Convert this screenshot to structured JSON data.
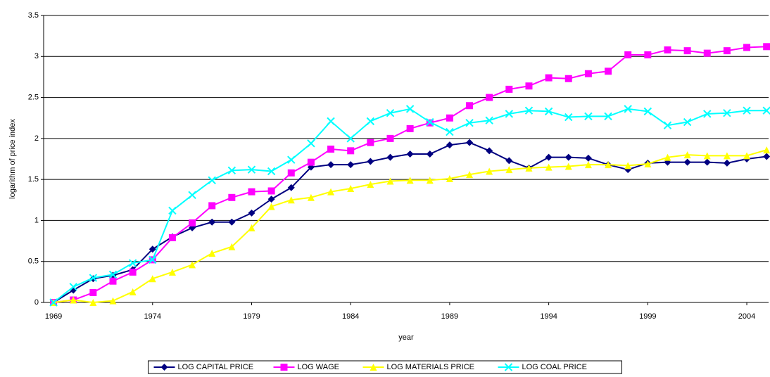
{
  "chart_data": {
    "type": "line",
    "y_label": "logarithm of price index",
    "x_label": "year",
    "x": [
      1969,
      1970,
      1971,
      1972,
      1973,
      1974,
      1975,
      1976,
      1977,
      1978,
      1979,
      1980,
      1981,
      1982,
      1983,
      1984,
      1985,
      1986,
      1987,
      1988,
      1989,
      1990,
      1991,
      1992,
      1993,
      1994,
      1995,
      1996,
      1997,
      1998,
      1999,
      2000,
      2001,
      2002,
      2003,
      2004,
      2005
    ],
    "series": [
      {
        "name": "LOG CAPITAL PRICE",
        "color": "#000080",
        "marker": "diamond",
        "values": [
          0,
          0.15,
          0.29,
          0.33,
          0.4,
          0.65,
          0.8,
          0.91,
          0.98,
          0.98,
          1.09,
          1.26,
          1.4,
          1.65,
          1.68,
          1.68,
          1.72,
          1.77,
          1.81,
          1.81,
          1.92,
          1.95,
          1.85,
          1.73,
          1.64,
          1.77,
          1.77,
          1.76,
          1.68,
          1.62,
          1.7,
          1.71,
          1.71,
          1.71,
          1.7,
          1.75,
          1.78
        ]
      },
      {
        "name": "LOG WAGE",
        "color": "#ff00ff",
        "marker": "square",
        "values": [
          0,
          0.03,
          0.12,
          0.26,
          0.37,
          0.52,
          0.79,
          0.97,
          1.18,
          1.28,
          1.35,
          1.36,
          1.58,
          1.71,
          1.87,
          1.85,
          1.95,
          2.0,
          2.12,
          2.19,
          2.25,
          2.4,
          2.5,
          2.6,
          2.64,
          2.74,
          2.73,
          2.79,
          2.82,
          3.02,
          3.02,
          3.08,
          3.07,
          3.04,
          3.07,
          3.11,
          3.12
        ]
      },
      {
        "name": "LOG MATERIALS PRICE",
        "color": "#ffff00",
        "marker": "triangle",
        "values": [
          0,
          0.03,
          0.0,
          0.02,
          0.13,
          0.29,
          0.37,
          0.46,
          0.6,
          0.68,
          0.91,
          1.17,
          1.25,
          1.28,
          1.35,
          1.39,
          1.44,
          1.48,
          1.49,
          1.49,
          1.51,
          1.56,
          1.6,
          1.62,
          1.64,
          1.65,
          1.66,
          1.68,
          1.68,
          1.67,
          1.69,
          1.77,
          1.8,
          1.79,
          1.79,
          1.79,
          1.86
        ]
      },
      {
        "name": "LOG COAL PRICE",
        "color": "#00ffff",
        "marker": "x",
        "values": [
          0,
          0.19,
          0.3,
          0.34,
          0.48,
          0.52,
          1.12,
          1.31,
          1.49,
          1.61,
          1.62,
          1.6,
          1.74,
          1.94,
          2.21,
          2.0,
          2.21,
          2.31,
          2.36,
          2.2,
          2.08,
          2.19,
          2.22,
          2.3,
          2.34,
          2.33,
          2.26,
          2.27,
          2.27,
          2.36,
          2.33,
          2.16,
          2.2,
          2.3,
          2.31,
          2.34,
          2.34
        ]
      }
    ],
    "xlim": [
      1968.5,
      2005.1
    ],
    "xticks": [
      1969,
      1974,
      1979,
      1984,
      1989,
      1994,
      1999,
      2004
    ],
    "ylim": [
      0,
      3.5
    ],
    "yticks": [
      0,
      0.5,
      1,
      1.5,
      2,
      2.5,
      3,
      3.5
    ],
    "grid": true,
    "legend": "bottom"
  }
}
